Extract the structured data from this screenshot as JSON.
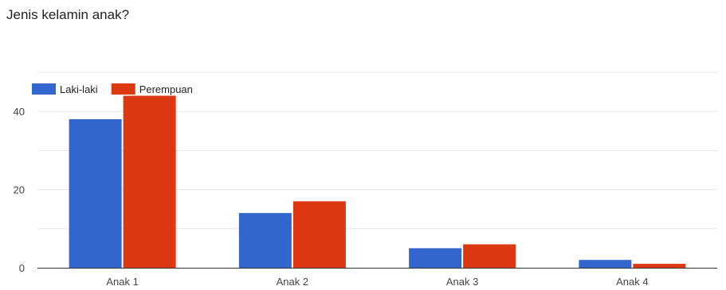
{
  "chart_data": {
    "type": "bar",
    "title": "Jenis kelamin anak?",
    "categories": [
      "Anak 1",
      "Anak 2",
      "Anak 3",
      "Anak 4"
    ],
    "series": [
      {
        "name": "Laki-laki",
        "values": [
          38,
          14,
          5,
          2
        ],
        "color": "#3366cc"
      },
      {
        "name": "Perempuan",
        "values": [
          44,
          17,
          6,
          1
        ],
        "color": "#dc3912"
      }
    ],
    "ylim": [
      0,
      50
    ],
    "yticks": [
      0,
      20,
      40
    ],
    "grid": true,
    "legend": "top-left"
  }
}
